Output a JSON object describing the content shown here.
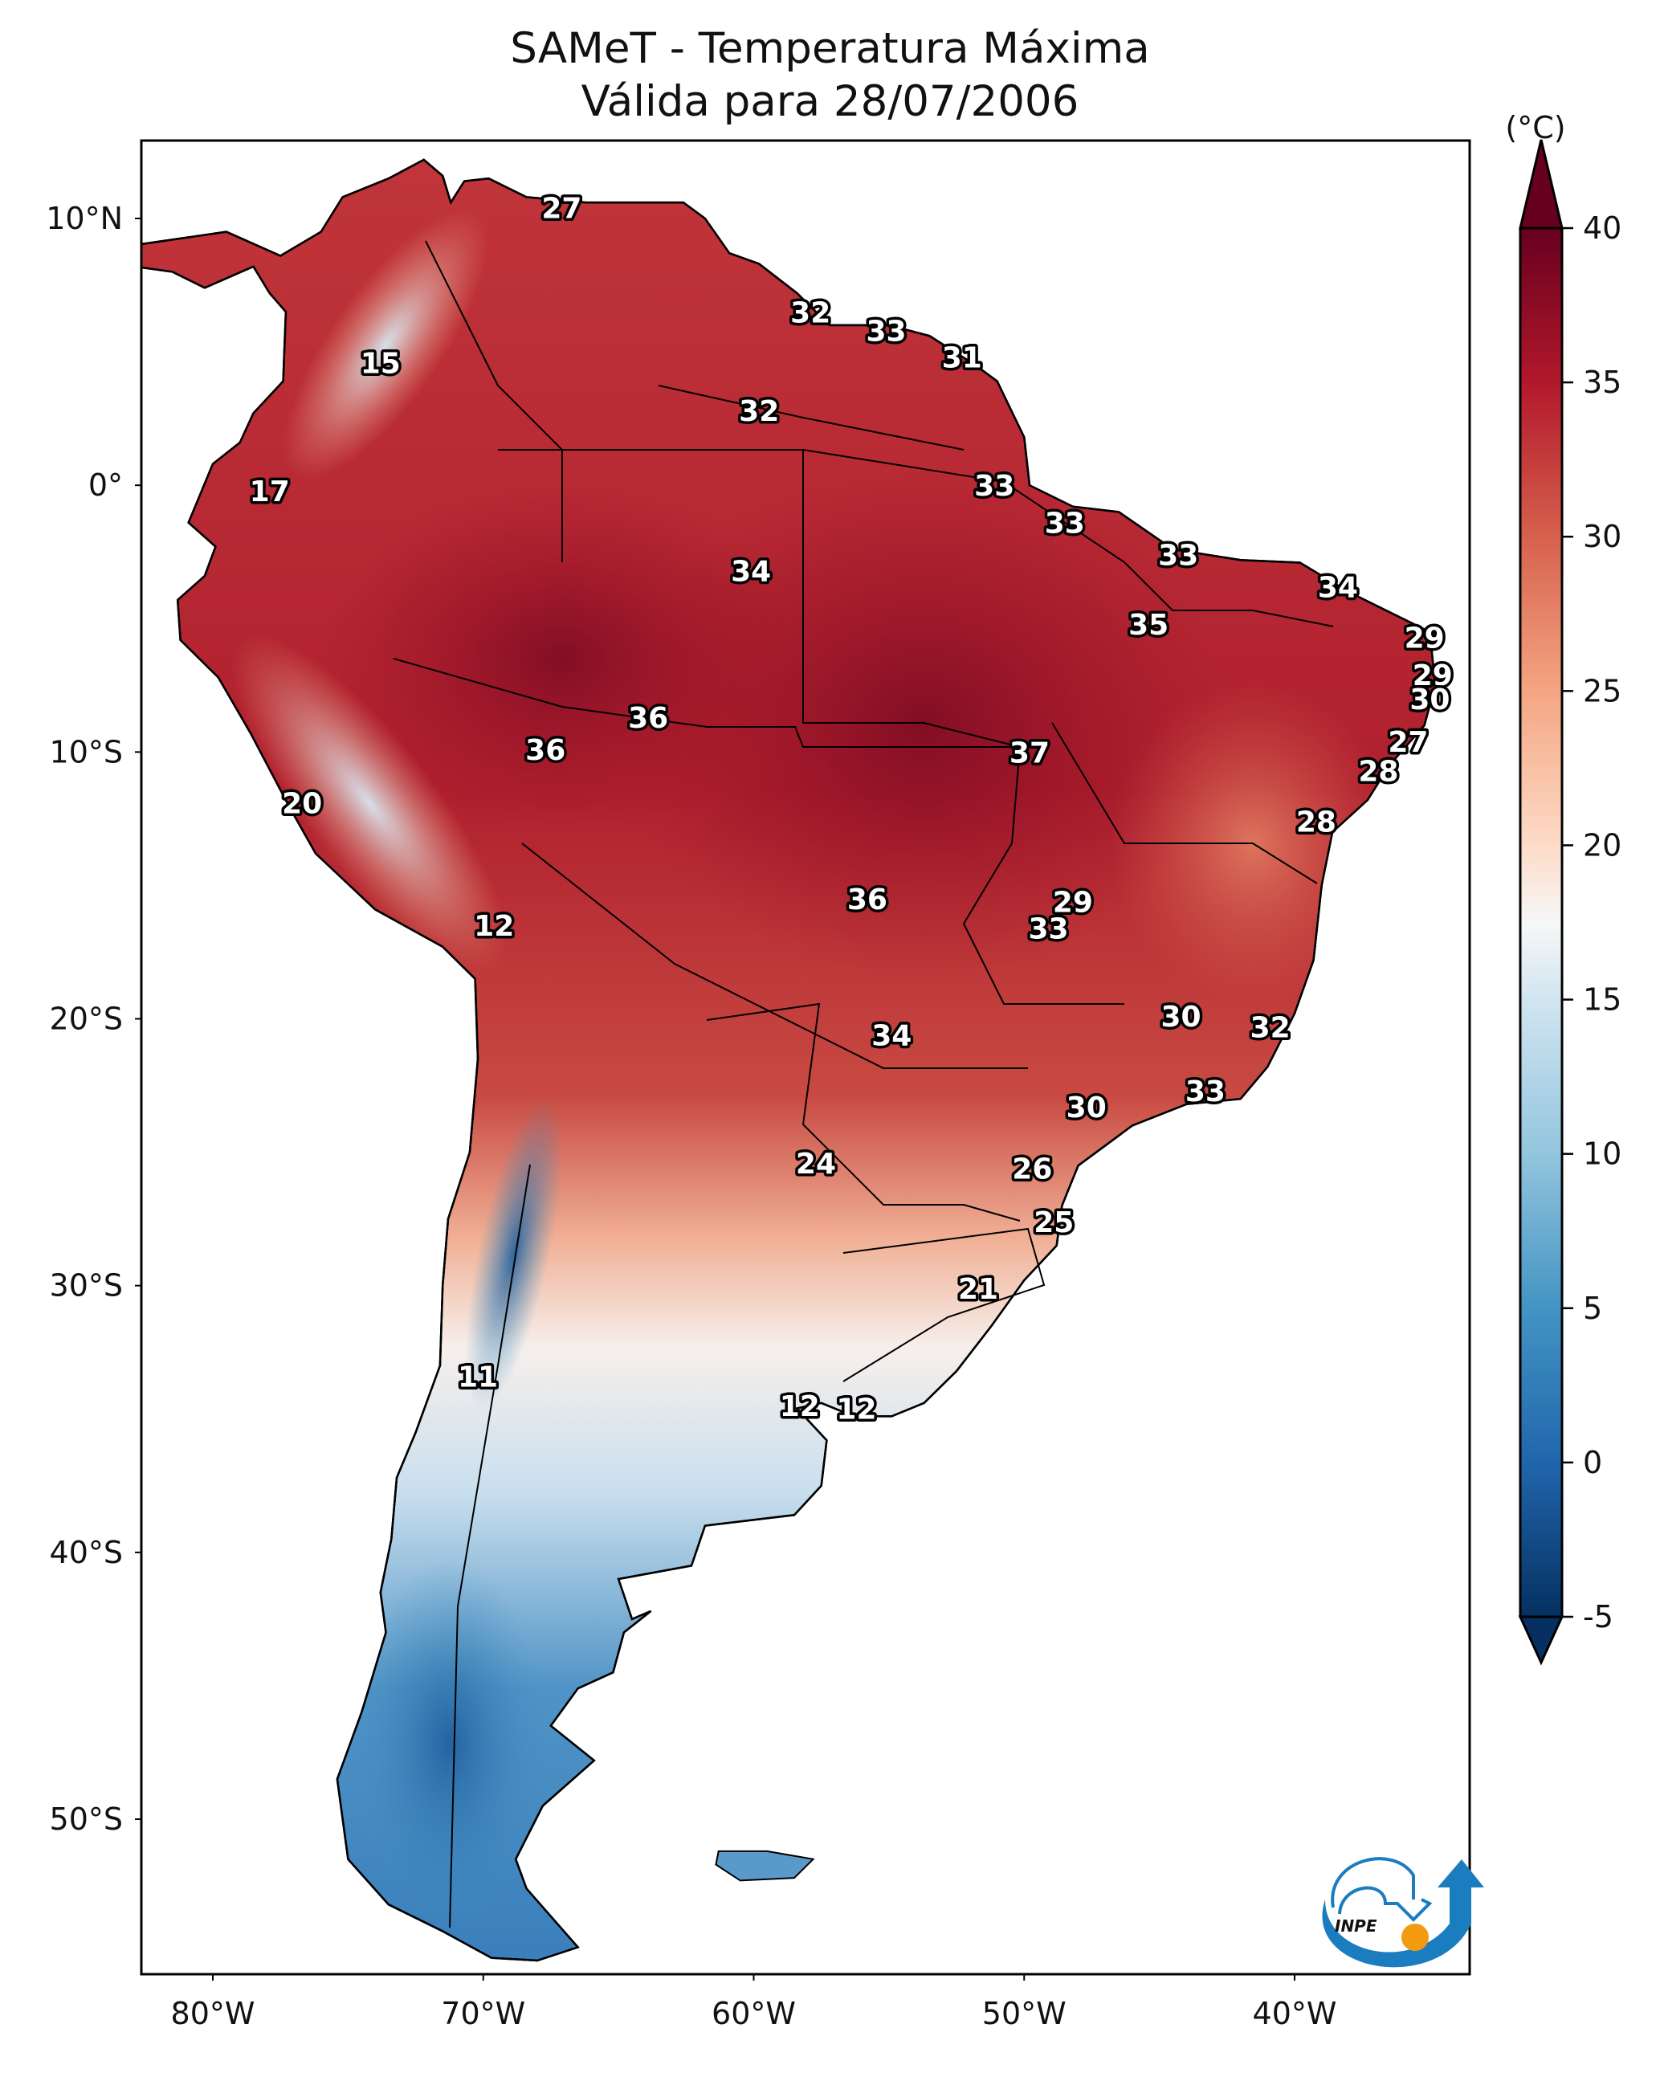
{
  "title_line1": "SAMeT - Temperatura Máxima",
  "title_line2": "Válida para 28/07/2006",
  "logo": {
    "text": "INPE",
    "icon": "inpe-logo-icon"
  },
  "chart_data": {
    "type": "heatmap",
    "title": "SAMeT - Temperatura Máxima Válida para 28/07/2006",
    "variable": "Maximum temperature",
    "units_label": "(°C)",
    "xlabel": "",
    "ylabel": "",
    "xlim": [
      -83,
      -33
    ],
    "ylim": [
      -56,
      13
    ],
    "x_ticks": [
      {
        "value": -80,
        "label": "80°W"
      },
      {
        "value": -70,
        "label": "70°W"
      },
      {
        "value": -60,
        "label": "60°W"
      },
      {
        "value": -50,
        "label": "50°W"
      },
      {
        "value": -40,
        "label": "40°W"
      }
    ],
    "y_ticks": [
      {
        "value": 10,
        "label": "10°N"
      },
      {
        "value": 0,
        "label": "0°"
      },
      {
        "value": -10,
        "label": "10°S"
      },
      {
        "value": -20,
        "label": "20°S"
      },
      {
        "value": -30,
        "label": "30°S"
      },
      {
        "value": -40,
        "label": "40°S"
      },
      {
        "value": -50,
        "label": "50°S"
      }
    ],
    "colorbar": {
      "cmap": "RdBu_r",
      "range": [
        -5,
        40
      ],
      "extend": "both",
      "ticks": [
        {
          "value": 40,
          "label": "40"
        },
        {
          "value": 35,
          "label": "35"
        },
        {
          "value": 30,
          "label": "30"
        },
        {
          "value": 25,
          "label": "25"
        },
        {
          "value": 20,
          "label": "20"
        },
        {
          "value": 15,
          "label": "15"
        },
        {
          "value": 10,
          "label": "10"
        },
        {
          "value": 5,
          "label": "5"
        },
        {
          "value": 0,
          "label": "0"
        },
        {
          "value": -5,
          "label": "-5"
        }
      ]
    },
    "station_labels": [
      {
        "lon": -67.1,
        "lat": 10.4,
        "value": "27"
      },
      {
        "lon": -57.9,
        "lat": 6.5,
        "value": "32"
      },
      {
        "lon": -55.1,
        "lat": 5.8,
        "value": "33"
      },
      {
        "lon": -52.3,
        "lat": 4.8,
        "value": "31"
      },
      {
        "lon": -73.8,
        "lat": 4.6,
        "value": "15"
      },
      {
        "lon": -59.8,
        "lat": 2.8,
        "value": "32"
      },
      {
        "lon": -77.9,
        "lat": -0.2,
        "value": "17"
      },
      {
        "lon": -51.1,
        "lat": 0.0,
        "value": "33"
      },
      {
        "lon": -48.5,
        "lat": -1.4,
        "value": "33"
      },
      {
        "lon": -60.1,
        "lat": -3.2,
        "value": "34"
      },
      {
        "lon": -44.3,
        "lat": -2.6,
        "value": "33"
      },
      {
        "lon": -38.4,
        "lat": -3.8,
        "value": "34"
      },
      {
        "lon": -45.4,
        "lat": -5.2,
        "value": "35"
      },
      {
        "lon": -35.2,
        "lat": -5.7,
        "value": "29"
      },
      {
        "lon": -34.9,
        "lat": -7.1,
        "value": "29"
      },
      {
        "lon": -35.0,
        "lat": -8.0,
        "value": "30"
      },
      {
        "lon": -63.9,
        "lat": -8.7,
        "value": "36"
      },
      {
        "lon": -67.7,
        "lat": -9.9,
        "value": "36"
      },
      {
        "lon": -49.8,
        "lat": -10.0,
        "value": "37"
      },
      {
        "lon": -35.8,
        "lat": -9.6,
        "value": "27"
      },
      {
        "lon": -36.9,
        "lat": -10.7,
        "value": "28"
      },
      {
        "lon": -76.7,
        "lat": -11.9,
        "value": "20"
      },
      {
        "lon": -39.2,
        "lat": -12.6,
        "value": "28"
      },
      {
        "lon": -55.8,
        "lat": -15.5,
        "value": "36"
      },
      {
        "lon": -48.2,
        "lat": -15.6,
        "value": "29"
      },
      {
        "lon": -69.6,
        "lat": -16.5,
        "value": "12"
      },
      {
        "lon": -49.1,
        "lat": -16.6,
        "value": "33"
      },
      {
        "lon": -44.2,
        "lat": -19.9,
        "value": "30"
      },
      {
        "lon": -40.9,
        "lat": -20.3,
        "value": "32"
      },
      {
        "lon": -54.9,
        "lat": -20.6,
        "value": "34"
      },
      {
        "lon": -43.3,
        "lat": -22.7,
        "value": "33"
      },
      {
        "lon": -47.7,
        "lat": -23.3,
        "value": "30"
      },
      {
        "lon": -57.7,
        "lat": -25.4,
        "value": "24"
      },
      {
        "lon": -49.7,
        "lat": -25.6,
        "value": "26"
      },
      {
        "lon": -48.9,
        "lat": -27.6,
        "value": "25"
      },
      {
        "lon": -51.7,
        "lat": -30.1,
        "value": "21"
      },
      {
        "lon": -70.2,
        "lat": -33.4,
        "value": "11"
      },
      {
        "lon": -58.3,
        "lat": -34.5,
        "value": "12"
      },
      {
        "lon": -56.2,
        "lat": -34.6,
        "value": "12"
      }
    ]
  }
}
